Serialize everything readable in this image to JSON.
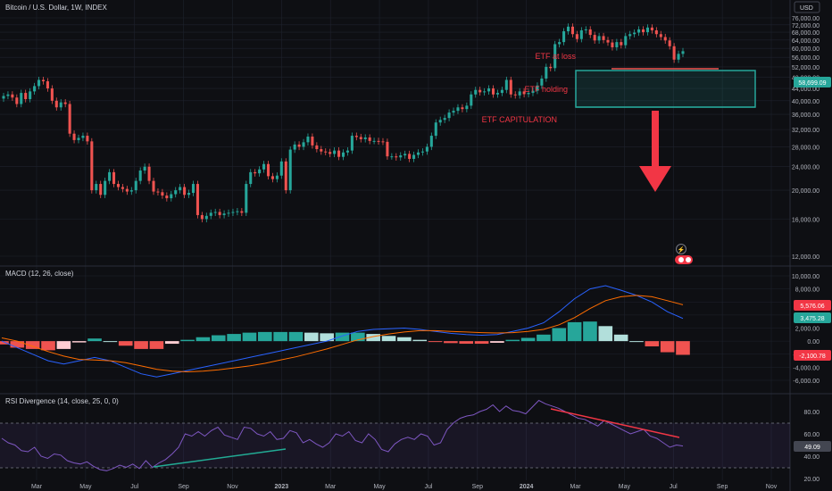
{
  "header": {
    "symbol": "Bitcoin / U.S. Dollar, 1W, INDEX",
    "currency": "USD"
  },
  "colors": {
    "background": "#0e0f13",
    "up": "#26a69a",
    "down": "#ef5350",
    "annotation_red": "#f23645",
    "macd_line": "#2962ff",
    "signal_line": "#ff6d00",
    "rsi_line": "#7e57c2",
    "trend_green": "#22ab94",
    "trend_red": "#f23645"
  },
  "labels": {
    "etf_at_loss": "ETF at loss",
    "etf_holding": "ETF holding",
    "etf_capitulation": "ETF CAPITULATION"
  },
  "x_axis": {
    "months": [
      "Mar",
      "May",
      "Jul",
      "Sep",
      "Nov",
      "2023",
      "Mar",
      "May",
      "Jul",
      "Sep",
      "2024",
      "Mar",
      "May",
      "Jul",
      "Sep",
      "Nov"
    ]
  },
  "chart_data": [
    {
      "type": "candlestick",
      "title": "Bitcoin / U.S. Dollar, 1W, INDEX",
      "y_scale": "log",
      "yticks": [
        "76,000.00",
        "72,000.00",
        "68,000.00",
        "64,000.00",
        "60,000.00",
        "56,000.00",
        "52,000.00",
        "48,000.00",
        "44,000.00",
        "40,000.00",
        "36,000.00",
        "32,000.00",
        "28,000.00",
        "24,000.00",
        "20,000.00",
        "16,000.00",
        "12,000.00"
      ],
      "last_price_label": "58,699.09",
      "x_range": [
        "2022-01",
        "2024-11"
      ],
      "closes": [
        41500,
        42000,
        41000,
        39000,
        42500,
        40500,
        43000,
        44800,
        47000,
        46500,
        44000,
        40000,
        38000,
        39500,
        39000,
        31000,
        29500,
        30000,
        30500,
        29200,
        20000,
        21000,
        19300,
        21500,
        23000,
        21000,
        20500,
        20200,
        19800,
        20000,
        21500,
        23300,
        24000,
        21500,
        19800,
        19700,
        19200,
        18800,
        19400,
        20000,
        20500,
        19300,
        19600,
        21000,
        16500,
        16000,
        16400,
        16800,
        16900,
        16500,
        16700,
        16800,
        16900,
        17000,
        16800,
        21000,
        23000,
        22800,
        23500,
        24500,
        22300,
        21800,
        22400,
        25000,
        20000,
        27400,
        28500,
        28000,
        29000,
        30300,
        28300,
        27500,
        27000,
        26900,
        26500,
        27200,
        25900,
        26800,
        27200,
        30500,
        30200,
        29700,
        30100,
        29300,
        29300,
        29200,
        29100,
        26000,
        26000,
        25800,
        26200,
        26500,
        25500,
        26300,
        26800,
        27000,
        28000,
        30500,
        33800,
        34500,
        35000,
        36500,
        37000,
        38000,
        37500,
        38500,
        42000,
        43500,
        42700,
        43000,
        44000,
        42000,
        42500,
        43500,
        47000,
        42000,
        41700,
        43000,
        42100,
        42500,
        43200,
        45000,
        47500,
        52000,
        51500,
        62000,
        63000,
        68500,
        71000,
        67000,
        64500,
        69000,
        69500,
        66600,
        63800,
        66000,
        64000,
        62800,
        60500,
        63000,
        61500,
        66000,
        67000,
        67800,
        69500,
        68000,
        70500,
        69000,
        67000,
        65500,
        63800,
        61000,
        55000,
        57500,
        58699
      ]
    },
    {
      "type": "line",
      "title": "MACD (12, 26, close)",
      "yticks": [
        "10,000.00",
        "8,000.00",
        "6,000.00",
        "4,000.00",
        "2,000.00",
        "0.00",
        "-2,000.00",
        "-4,000.00",
        "-6,000.00"
      ],
      "value_labels": {
        "signal": "5,576.06",
        "macd": "3,475.28",
        "histogram": "-2,100.78"
      },
      "series": [
        {
          "name": "MACD",
          "values": [
            0,
            -1000,
            -2000,
            -3000,
            -3500,
            -3000,
            -2500,
            -3000,
            -4000,
            -5000,
            -5500,
            -5000,
            -4500,
            -4000,
            -3500,
            -3000,
            -2500,
            -2000,
            -1500,
            -1000,
            -500,
            0,
            800,
            1500,
            1800,
            1900,
            2000,
            1800,
            1500,
            1200,
            1000,
            900,
            1000,
            1500,
            2000,
            2800,
            4500,
            6500,
            8000,
            8500,
            7800,
            7000,
            6000,
            4500,
            3475
          ]
        },
        {
          "name": "Signal",
          "values": [
            500,
            0,
            -800,
            -1600,
            -2300,
            -2800,
            -2900,
            -3000,
            -3300,
            -3800,
            -4300,
            -4600,
            -4700,
            -4600,
            -4400,
            -4100,
            -3800,
            -3400,
            -2900,
            -2400,
            -1800,
            -1200,
            -500,
            200,
            700,
            1100,
            1400,
            1600,
            1600,
            1500,
            1400,
            1300,
            1250,
            1300,
            1500,
            1800,
            2500,
            3600,
            5000,
            6200,
            6800,
            7000,
            6800,
            6200,
            5576
          ]
        },
        {
          "name": "Histogram",
          "values": [
            -500,
            -1000,
            -1200,
            -1400,
            -1200,
            -200,
            400,
            0,
            -700,
            -1200,
            -1200,
            -400,
            200,
            600,
            900,
            1100,
            1300,
            1400,
            1400,
            1400,
            1300,
            1200,
            1300,
            1300,
            1100,
            800,
            600,
            200,
            -100,
            -300,
            -400,
            -400,
            -250,
            200,
            500,
            1000,
            2000,
            2900,
            3000,
            2300,
            1000,
            0,
            -800,
            -1700,
            -2100
          ]
        }
      ]
    },
    {
      "type": "line",
      "title": "RSI Divergence (14, close, 25, 0, 0)",
      "yticks": [
        "80.00",
        "60.00",
        "40.00",
        "20.00"
      ],
      "value_label": "49.09",
      "bands": [
        30,
        70
      ],
      "series": [
        {
          "name": "RSI",
          "values": [
            56,
            52,
            50,
            45,
            44,
            48,
            40,
            38,
            42,
            41,
            36,
            34,
            33,
            35,
            31,
            28,
            27,
            29,
            32,
            30,
            33,
            29,
            36,
            30,
            34,
            37,
            42,
            48,
            60,
            58,
            62,
            58,
            63,
            66,
            59,
            57,
            55,
            66,
            65,
            60,
            58,
            62,
            55,
            56,
            63,
            61,
            52,
            55,
            51,
            48,
            52,
            60,
            58,
            62,
            54,
            52,
            60,
            55,
            46,
            44,
            51,
            55,
            57,
            55,
            60,
            58,
            50,
            52,
            64,
            70,
            74,
            76,
            77,
            80,
            82,
            86,
            80,
            85,
            81,
            80,
            78,
            84,
            90,
            87,
            85,
            83,
            80,
            77,
            74,
            73,
            70,
            67,
            72,
            69,
            66,
            63,
            60,
            62,
            64,
            58,
            56,
            52,
            48,
            50,
            49.09
          ]
        }
      ]
    }
  ]
}
